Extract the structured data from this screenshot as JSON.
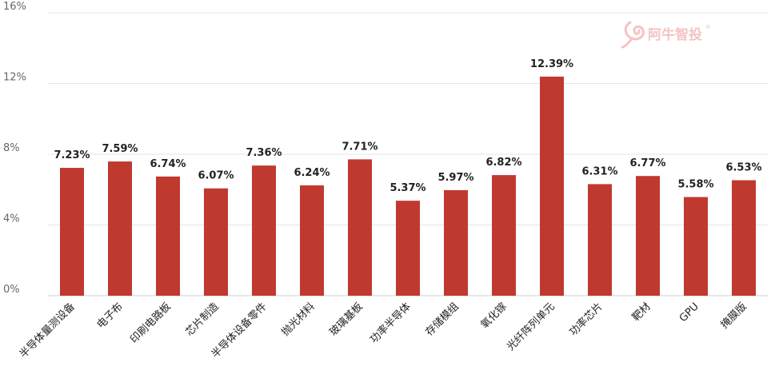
{
  "watermark": {
    "text": "阿牛智投",
    "registered": "®"
  },
  "chart_data": {
    "type": "bar",
    "categories": [
      "半导体量测设备",
      "电子布",
      "印刷电路板",
      "芯片制造",
      "半导体设备零件",
      "抛光材料",
      "玻璃基板",
      "功率半导体",
      "存储模组",
      "氧化镓",
      "光纤阵列单元",
      "功率芯片",
      "靶材",
      "GPU",
      "掩膜版"
    ],
    "values": [
      7.23,
      7.59,
      6.74,
      6.07,
      7.36,
      6.24,
      7.71,
      5.37,
      5.97,
      6.82,
      12.39,
      6.31,
      6.77,
      5.58,
      6.53
    ],
    "value_labels": [
      "7.23%",
      "7.59%",
      "6.74%",
      "6.07%",
      "7.36%",
      "6.24%",
      "7.71%",
      "5.37%",
      "5.97%",
      "6.82%",
      "12.39%",
      "6.31%",
      "6.77%",
      "5.58%",
      "6.53%"
    ],
    "yticks": [
      0,
      4,
      8,
      12,
      16
    ],
    "ytick_labels": [
      "0%",
      "4%",
      "8%",
      "12%",
      "16%"
    ],
    "ylim": [
      0,
      16
    ],
    "grid": true,
    "bar_color": "#c0392f"
  }
}
